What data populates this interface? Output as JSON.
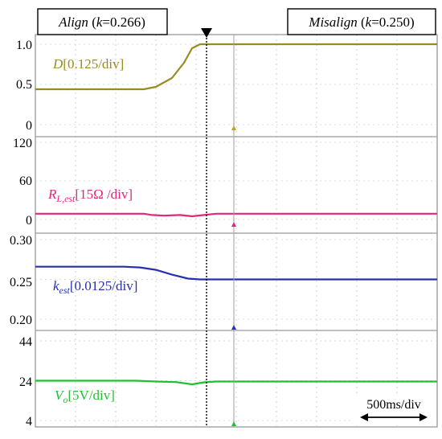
{
  "header": {
    "align_label": "Align",
    "align_k_open": "(",
    "align_k_var": "k",
    "align_k_value": "=0.266)",
    "misalign_label": "Misalign",
    "misalign_k_open": "(",
    "misalign_k_var": "k",
    "misalign_k_value": "=0.250)"
  },
  "timebase": "500ms/div",
  "chart_data": [
    {
      "type": "line",
      "name": "D",
      "label_main": "D",
      "label_sub": "",
      "label_scale": "[0.125/div]",
      "color": "#9a8a20",
      "y_ticks": [
        "1.0",
        "0.5",
        "0"
      ],
      "ylim": [
        0,
        1.0
      ],
      "x_div": [
        0,
        2.3,
        2.7,
        3.0,
        3.4,
        3.7,
        3.9,
        4.1,
        5.0,
        10
      ],
      "y": [
        0.44,
        0.44,
        0.44,
        0.47,
        0.58,
        0.77,
        0.95,
        1.0,
        1.0,
        1.0
      ]
    },
    {
      "type": "line",
      "name": "RL,est",
      "label_main": "R",
      "label_sub": "L,est",
      "label_scale": "[15Ω /div]",
      "color": "#e0287a",
      "y_ticks": [
        "120",
        "60",
        "0"
      ],
      "ylim": [
        0,
        120
      ],
      "x_div": [
        0,
        2.7,
        2.9,
        3.2,
        3.6,
        3.9,
        4.2,
        4.5,
        10
      ],
      "y": [
        9,
        9,
        7,
        6,
        7,
        5,
        7,
        9,
        9
      ]
    },
    {
      "type": "line",
      "name": "kest",
      "label_main": "k",
      "label_sub": "est",
      "label_scale": "[0.0125/div]",
      "color": "#2430b0",
      "y_ticks": [
        "0.30",
        "0.25",
        "0.20"
      ],
      "ylim": [
        0.2,
        0.3
      ],
      "x_div": [
        0,
        2.2,
        2.6,
        3.0,
        3.4,
        3.8,
        4.1,
        10
      ],
      "y": [
        0.266,
        0.266,
        0.265,
        0.262,
        0.256,
        0.251,
        0.25,
        0.25
      ]
    },
    {
      "type": "line",
      "name": "Vo",
      "label_main": "V",
      "label_sub": "o",
      "label_scale": "[5V/div]",
      "color": "#20c030",
      "y_ticks": [
        "44",
        "24",
        "4"
      ],
      "ylim": [
        4,
        44
      ],
      "x_div": [
        0,
        2.5,
        3.0,
        3.5,
        3.9,
        4.2,
        4.5,
        10
      ],
      "y": [
        24,
        24,
        23.6,
        23.3,
        22.2,
        23.2,
        23.6,
        23.6
      ]
    }
  ]
}
